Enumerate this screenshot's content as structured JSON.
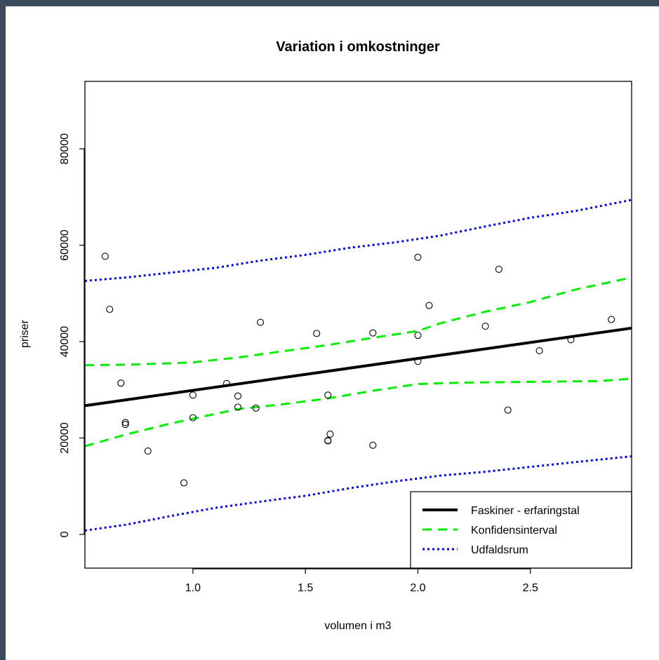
{
  "chart_data": {
    "type": "scatter",
    "title": "Variation i omkostninger",
    "xlabel": "volumen i m3",
    "ylabel": "priser",
    "xlim": [
      0.52,
      2.95
    ],
    "ylim": [
      -7000,
      94000
    ],
    "xticks": [
      1.0,
      1.5,
      2.0,
      2.5
    ],
    "xtick_labels": [
      "1.0",
      "1.5",
      "2.0",
      "2.5"
    ],
    "yticks": [
      0,
      20000,
      40000,
      60000,
      80000
    ],
    "ytick_labels": [
      "0",
      "20000",
      "40000",
      "60000",
      "80000"
    ],
    "grid": false,
    "legend_position": "bottom-right",
    "points": {
      "x": [
        0.61,
        0.63,
        0.68,
        0.7,
        0.7,
        0.8,
        0.96,
        1.0,
        1.0,
        1.15,
        1.2,
        1.2,
        1.28,
        1.3,
        1.55,
        1.6,
        1.6,
        1.6,
        1.61,
        1.8,
        1.8,
        2.0,
        2.0,
        2.0,
        2.05,
        2.3,
        2.36,
        2.4,
        2.54,
        2.68,
        2.86
      ],
      "y": [
        57700,
        46700,
        31400,
        23200,
        22800,
        17300,
        10700,
        28900,
        24200,
        31300,
        28700,
        26400,
        26200,
        44000,
        41700,
        28900,
        19500,
        19400,
        20800,
        41800,
        18500,
        57500,
        41300,
        35900,
        47500,
        43200,
        55000,
        25800,
        38100,
        40400,
        44600
      ]
    },
    "series": [
      {
        "name": "Faskiner - erfaringstal",
        "style": "solid",
        "color": "#000000",
        "x": [
          0.52,
          2.95
        ],
        "y": [
          26700,
          42800
        ]
      },
      {
        "name": "Konfidensinterval",
        "style": "dashed",
        "color": "#00ee00",
        "band": "upper",
        "x": [
          0.52,
          0.7,
          0.9,
          1.0,
          1.2,
          1.4,
          1.6,
          1.8,
          2.0,
          2.1,
          2.3,
          2.5,
          2.7,
          2.95
        ],
        "y": [
          35100,
          35200,
          35500,
          35700,
          36700,
          38000,
          39300,
          40800,
          42200,
          43800,
          46200,
          48200,
          50800,
          53300
        ]
      },
      {
        "name": "Konfidensinterval",
        "style": "dashed",
        "color": "#00ee00",
        "band": "lower",
        "x": [
          0.52,
          0.7,
          0.9,
          1.0,
          1.2,
          1.4,
          1.6,
          1.8,
          2.0,
          2.2,
          2.4,
          2.6,
          2.8,
          2.95
        ],
        "y": [
          18300,
          20700,
          23000,
          24000,
          26000,
          27000,
          28200,
          29800,
          31200,
          31500,
          31600,
          31700,
          31800,
          32300
        ]
      },
      {
        "name": "Udfaldsrum",
        "style": "dotted",
        "color": "#0000ee",
        "band": "upper",
        "x": [
          0.52,
          0.7,
          0.9,
          1.1,
          1.3,
          1.5,
          1.7,
          1.9,
          2.1,
          2.3,
          2.5,
          2.7,
          2.95
        ],
        "y": [
          52600,
          53300,
          54300,
          55300,
          56800,
          58000,
          59500,
          60600,
          62000,
          63900,
          65700,
          67100,
          69400
        ]
      },
      {
        "name": "Udfaldsrum",
        "style": "dotted",
        "color": "#0000ee",
        "band": "lower",
        "x": [
          0.52,
          0.7,
          0.9,
          1.1,
          1.3,
          1.5,
          1.7,
          1.9,
          2.1,
          2.3,
          2.5,
          2.7,
          2.95
        ],
        "y": [
          800,
          2000,
          3800,
          5500,
          6800,
          8000,
          9600,
          11000,
          12200,
          13000,
          14000,
          15000,
          16200
        ]
      }
    ],
    "legend": [
      {
        "label": "Faskiner - erfaringstal",
        "style": "solid",
        "color": "#000000"
      },
      {
        "label": "Konfidensinterval",
        "style": "dashed",
        "color": "#00ee00"
      },
      {
        "label": "Udfaldsrum",
        "style": "dotted",
        "color": "#0000ee"
      }
    ]
  }
}
